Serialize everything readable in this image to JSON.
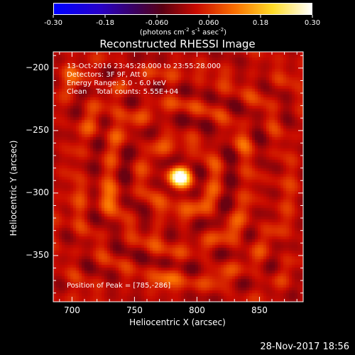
{
  "colorbar": {
    "tick_labels": [
      "-0.30",
      "-0.18",
      "-0.060",
      "0.060",
      "0.18",
      "0.30"
    ],
    "range": [
      -0.3,
      0.3
    ],
    "units_text": "(photons cm",
    "units_parts": [
      "(photons cm",
      "-2",
      " s",
      "-1",
      " asec",
      "-2",
      ")"
    ]
  },
  "title": "Reconstructed RHESSI Image",
  "info": {
    "line1": "13-Oct-2016 23:45:28.000 to 23:55:28.000",
    "line2": "Detectors: 3F 9F, Att 0",
    "line3": "Energy Range: 3.0 - 6.0 keV",
    "line4": "Clean    Total counts: 5.55E+04",
    "peak": "Position of Peak = [785,-286]"
  },
  "chart_data": {
    "type": "heatmap",
    "title": "Reconstructed RHESSI Image",
    "xlabel": "Heliocentric X (arcsec)",
    "ylabel": "Heliocentric Y (arcsec)",
    "xlim": [
      685,
      885
    ],
    "ylim": [
      -387,
      -187
    ],
    "xticks": [
      700,
      750,
      800,
      850
    ],
    "yticks": [
      -200,
      -250,
      -300,
      -350
    ],
    "peak": {
      "x": 785,
      "y": -286
    },
    "colormap": "red-temperature",
    "color_range": [
      -0.3,
      0.3
    ]
  },
  "footer": "28-Nov-2017 18:56"
}
